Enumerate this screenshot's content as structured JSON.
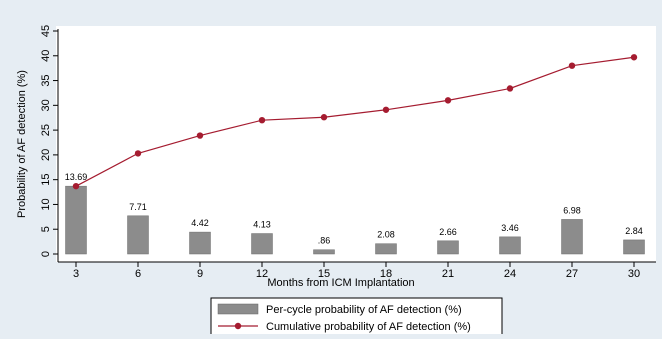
{
  "chart_data": {
    "type": "bar+line",
    "title": "",
    "xlabel": "Months from ICM Implantation",
    "ylabel": "Probability of AF detection (%)",
    "categories": [
      "3",
      "6",
      "9",
      "12",
      "15",
      "18",
      "21",
      "24",
      "27",
      "30"
    ],
    "ylim": [
      0,
      45
    ],
    "yticks": [
      "0",
      "5",
      "10",
      "15",
      "20",
      "25",
      "30",
      "35",
      "40",
      "45"
    ],
    "grid": false,
    "legend_position": "bottom",
    "series": [
      {
        "name": "Per-cycle probability of AF detection (%)",
        "type": "bar",
        "values": [
          13.69,
          7.71,
          4.42,
          4.13,
          0.86,
          2.08,
          2.66,
          3.46,
          6.98,
          2.84
        ],
        "labels": [
          "13.69",
          "7.71",
          "4.42",
          "4.13",
          ".86",
          "2.08",
          "2.66",
          "3.46",
          "6.98",
          "2.84"
        ],
        "color": "#8c8c8c"
      },
      {
        "name": "Cumulative probability of AF detection (%)",
        "type": "line",
        "values": [
          13.69,
          20.3,
          23.9,
          27.0,
          27.6,
          29.1,
          31.0,
          33.4,
          38.0,
          39.7
        ],
        "color": "#a51c30"
      }
    ]
  }
}
